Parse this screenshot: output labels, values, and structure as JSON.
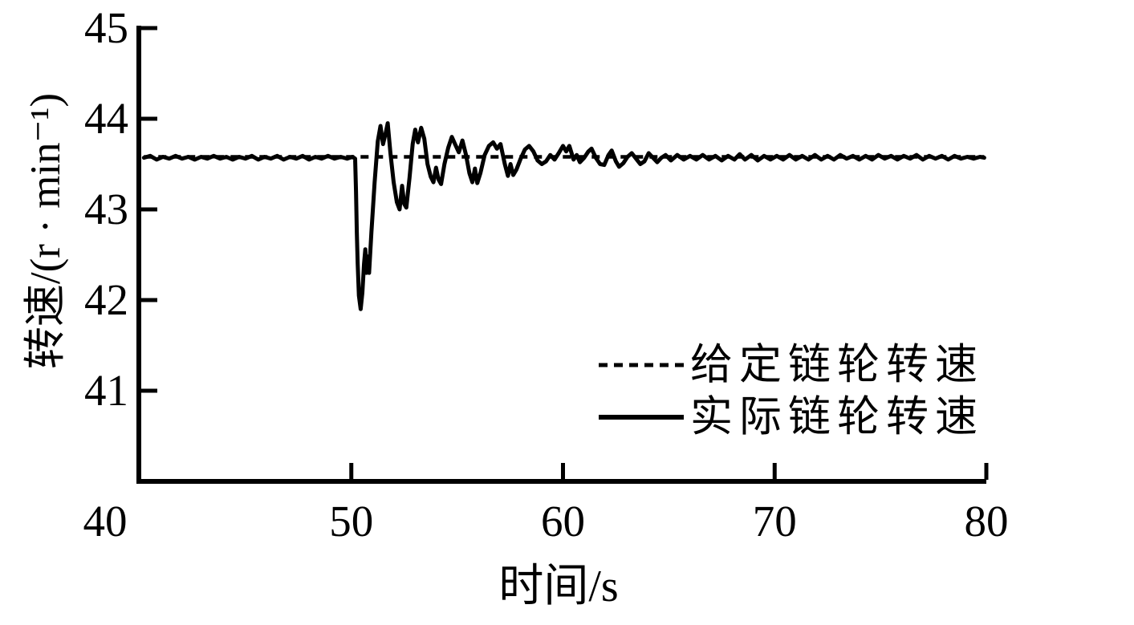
{
  "figure": {
    "background": "#ffffff",
    "line_color": "#000000"
  },
  "chart_data": {
    "type": "line",
    "title": "",
    "xlabel": "时间/s",
    "ylabel": "转速/(r · min⁻¹)",
    "xlim": [
      40,
      80
    ],
    "ylim": [
      40,
      45
    ],
    "x_ticks": [
      40,
      50,
      60,
      70,
      80
    ],
    "y_ticks": [
      45,
      44,
      43,
      42,
      41
    ],
    "grid": false,
    "legend": {
      "position": "lower-right-inside",
      "entries": [
        {
          "label": "给定链轮转速",
          "style": "dashed"
        },
        {
          "label": "实际链轮转速",
          "style": "solid"
        }
      ]
    },
    "series": [
      {
        "name": "给定链轮转速",
        "style": "dashed",
        "constant_value": 43.58,
        "x_start": 40.2,
        "x_end": 79.9
      },
      {
        "name": "实际链轮转速",
        "style": "solid",
        "points": [
          [
            40.2,
            43.57
          ],
          [
            40.5,
            43.59
          ],
          [
            40.8,
            43.55
          ],
          [
            41.1,
            43.58
          ],
          [
            41.4,
            43.56
          ],
          [
            41.7,
            43.59
          ],
          [
            42.0,
            43.56
          ],
          [
            42.3,
            43.58
          ],
          [
            42.6,
            43.55
          ],
          [
            42.9,
            43.58
          ],
          [
            43.2,
            43.56
          ],
          [
            43.5,
            43.59
          ],
          [
            43.8,
            43.56
          ],
          [
            44.1,
            43.58
          ],
          [
            44.4,
            43.55
          ],
          [
            44.7,
            43.58
          ],
          [
            45.0,
            43.56
          ],
          [
            45.3,
            43.59
          ],
          [
            45.6,
            43.55
          ],
          [
            45.9,
            43.58
          ],
          [
            46.2,
            43.56
          ],
          [
            46.5,
            43.59
          ],
          [
            46.8,
            43.55
          ],
          [
            47.1,
            43.58
          ],
          [
            47.4,
            43.56
          ],
          [
            47.7,
            43.59
          ],
          [
            48.0,
            43.55
          ],
          [
            48.3,
            43.58
          ],
          [
            48.6,
            43.56
          ],
          [
            48.9,
            43.59
          ],
          [
            49.2,
            43.56
          ],
          [
            49.5,
            43.58
          ],
          [
            49.8,
            43.56
          ],
          [
            50.05,
            43.58
          ],
          [
            50.18,
            43.56
          ],
          [
            50.22,
            43.2
          ],
          [
            50.26,
            42.75
          ],
          [
            50.3,
            42.4
          ],
          [
            50.36,
            42.05
          ],
          [
            50.44,
            41.9
          ],
          [
            50.52,
            42.08
          ],
          [
            50.6,
            42.4
          ],
          [
            50.66,
            42.56
          ],
          [
            50.72,
            42.3
          ],
          [
            50.78,
            42.48
          ],
          [
            50.84,
            42.3
          ],
          [
            50.95,
            42.75
          ],
          [
            51.1,
            43.3
          ],
          [
            51.25,
            43.75
          ],
          [
            51.38,
            43.92
          ],
          [
            51.5,
            43.72
          ],
          [
            51.62,
            43.84
          ],
          [
            51.72,
            43.95
          ],
          [
            51.85,
            43.62
          ],
          [
            52.0,
            43.3
          ],
          [
            52.15,
            43.08
          ],
          [
            52.28,
            43.0
          ],
          [
            52.4,
            43.26
          ],
          [
            52.5,
            43.06
          ],
          [
            52.6,
            43.02
          ],
          [
            52.75,
            43.35
          ],
          [
            52.9,
            43.72
          ],
          [
            53.02,
            43.88
          ],
          [
            53.15,
            43.74
          ],
          [
            53.3,
            43.9
          ],
          [
            53.45,
            43.78
          ],
          [
            53.6,
            43.5
          ],
          [
            53.75,
            43.36
          ],
          [
            53.88,
            43.3
          ],
          [
            54.0,
            43.46
          ],
          [
            54.12,
            43.33
          ],
          [
            54.24,
            43.28
          ],
          [
            54.4,
            43.5
          ],
          [
            54.58,
            43.68
          ],
          [
            54.75,
            43.8
          ],
          [
            54.9,
            43.72
          ],
          [
            55.08,
            43.63
          ],
          [
            55.25,
            43.76
          ],
          [
            55.42,
            43.6
          ],
          [
            55.58,
            43.4
          ],
          [
            55.72,
            43.3
          ],
          [
            55.84,
            43.45
          ],
          [
            55.95,
            43.29
          ],
          [
            56.1,
            43.4
          ],
          [
            56.3,
            43.6
          ],
          [
            56.5,
            43.7
          ],
          [
            56.7,
            43.74
          ],
          [
            56.88,
            43.67
          ],
          [
            57.05,
            43.72
          ],
          [
            57.25,
            43.5
          ],
          [
            57.4,
            43.37
          ],
          [
            57.52,
            43.5
          ],
          [
            57.65,
            43.38
          ],
          [
            57.8,
            43.44
          ],
          [
            58.0,
            43.56
          ],
          [
            58.2,
            43.66
          ],
          [
            58.4,
            43.7
          ],
          [
            58.6,
            43.64
          ],
          [
            58.8,
            43.54
          ],
          [
            59.0,
            43.5
          ],
          [
            59.2,
            43.53
          ],
          [
            59.4,
            43.6
          ],
          [
            59.6,
            43.55
          ],
          [
            59.8,
            43.62
          ],
          [
            60.0,
            43.7
          ],
          [
            60.15,
            43.64
          ],
          [
            60.3,
            43.7
          ],
          [
            60.5,
            43.55
          ],
          [
            60.65,
            43.6
          ],
          [
            60.8,
            43.52
          ],
          [
            61.0,
            43.57
          ],
          [
            61.2,
            43.64
          ],
          [
            61.35,
            43.67
          ],
          [
            61.55,
            43.57
          ],
          [
            61.75,
            43.5
          ],
          [
            61.95,
            43.49
          ],
          [
            62.15,
            43.6
          ],
          [
            62.3,
            43.65
          ],
          [
            62.5,
            43.53
          ],
          [
            62.65,
            43.47
          ],
          [
            62.85,
            43.51
          ],
          [
            63.05,
            43.58
          ],
          [
            63.25,
            43.62
          ],
          [
            63.45,
            43.56
          ],
          [
            63.65,
            43.5
          ],
          [
            63.85,
            43.53
          ],
          [
            64.05,
            43.62
          ],
          [
            64.25,
            43.57
          ],
          [
            64.45,
            43.52
          ],
          [
            64.65,
            43.57
          ],
          [
            64.85,
            43.6
          ],
          [
            65.1,
            43.54
          ],
          [
            65.4,
            43.6
          ],
          [
            65.7,
            43.55
          ],
          [
            66.0,
            43.59
          ],
          [
            66.3,
            43.55
          ],
          [
            66.6,
            43.6
          ],
          [
            66.9,
            43.55
          ],
          [
            67.2,
            43.59
          ],
          [
            67.5,
            43.54
          ],
          [
            67.8,
            43.59
          ],
          [
            68.1,
            43.55
          ],
          [
            68.35,
            43.61
          ],
          [
            68.6,
            43.55
          ],
          [
            68.9,
            43.6
          ],
          [
            69.2,
            43.54
          ],
          [
            69.5,
            43.59
          ],
          [
            69.8,
            43.55
          ],
          [
            70.1,
            43.59
          ],
          [
            70.4,
            43.55
          ],
          [
            70.7,
            43.6
          ],
          [
            71.0,
            43.55
          ],
          [
            71.3,
            43.59
          ],
          [
            71.6,
            43.55
          ],
          [
            71.9,
            43.6
          ],
          [
            72.2,
            43.55
          ],
          [
            72.5,
            43.59
          ],
          [
            72.8,
            43.55
          ],
          [
            73.1,
            43.6
          ],
          [
            73.4,
            43.56
          ],
          [
            73.7,
            43.59
          ],
          [
            74.0,
            43.55
          ],
          [
            74.3,
            43.59
          ],
          [
            74.6,
            43.55
          ],
          [
            74.9,
            43.6
          ],
          [
            75.2,
            43.56
          ],
          [
            75.5,
            43.59
          ],
          [
            75.8,
            43.55
          ],
          [
            76.1,
            43.59
          ],
          [
            76.4,
            43.56
          ],
          [
            76.7,
            43.6
          ],
          [
            77.0,
            43.55
          ],
          [
            77.3,
            43.59
          ],
          [
            77.6,
            43.56
          ],
          [
            77.9,
            43.59
          ],
          [
            78.2,
            43.55
          ],
          [
            78.5,
            43.59
          ],
          [
            78.8,
            43.56
          ],
          [
            79.1,
            43.58
          ],
          [
            79.4,
            43.56
          ],
          [
            79.7,
            43.58
          ],
          [
            79.9,
            43.57
          ]
        ]
      }
    ]
  }
}
